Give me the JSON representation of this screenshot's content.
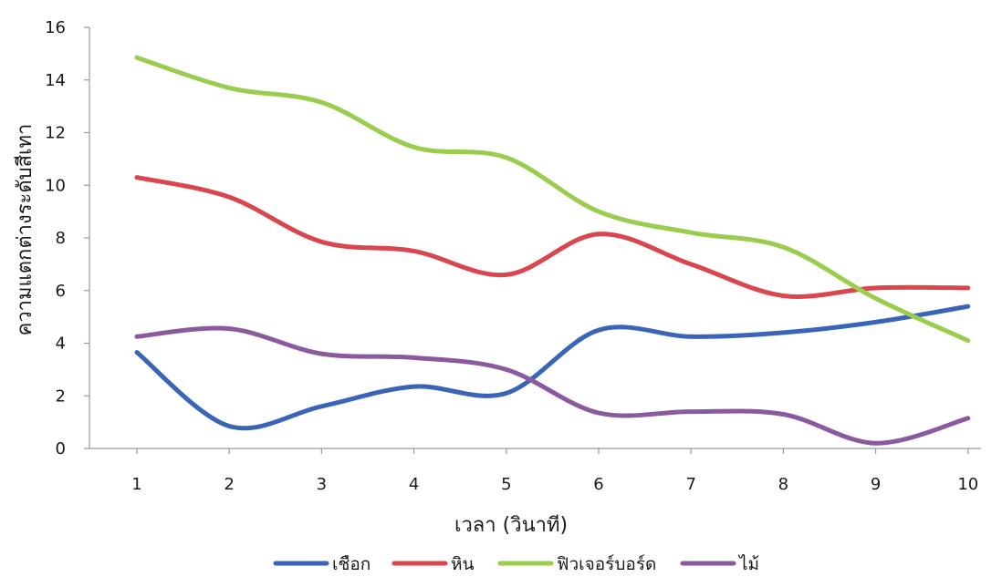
{
  "chart_data": {
    "type": "line",
    "title": "",
    "xlabel": "เวลา (วินาที)",
    "ylabel": "ความแตกต่างระดับสีเทา",
    "x": [
      1,
      2,
      3,
      4,
      5,
      6,
      7,
      8,
      9,
      10
    ],
    "ylim": [
      0,
      16
    ],
    "yticks": [
      0,
      2,
      4,
      6,
      8,
      10,
      12,
      14,
      16
    ],
    "grid": false,
    "legend_position": "bottom",
    "series": [
      {
        "name": "เชือก",
        "color": "#3a64b8",
        "values": [
          3.65,
          0.85,
          1.6,
          2.35,
          2.1,
          4.5,
          4.25,
          4.4,
          4.8,
          5.4
        ]
      },
      {
        "name": "หิน",
        "color": "#d9464e",
        "values": [
          10.3,
          9.55,
          7.85,
          7.5,
          6.6,
          8.15,
          7.0,
          5.8,
          6.1,
          6.1
        ]
      },
      {
        "name": "ฟิวเจอร์บอร์ด",
        "color": "#9acd4e",
        "values": [
          14.85,
          13.7,
          13.15,
          11.45,
          11.05,
          9.0,
          8.2,
          7.65,
          5.7,
          4.1
        ]
      },
      {
        "name": "ไม้",
        "color": "#8b5a9e",
        "values": [
          4.25,
          4.55,
          3.6,
          3.45,
          3.0,
          1.35,
          1.4,
          1.3,
          0.2,
          1.15
        ]
      }
    ]
  }
}
